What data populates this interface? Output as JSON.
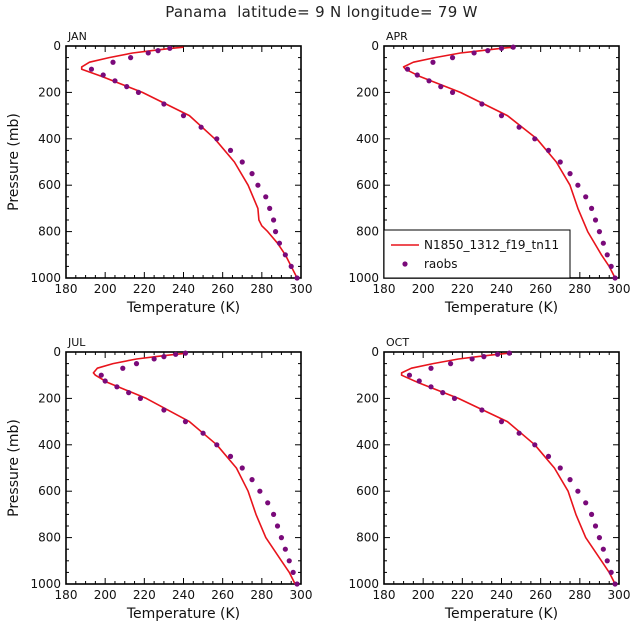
{
  "figure": {
    "title": "Panama  latitude= 9 N longitude= 79 W"
  },
  "colors": {
    "model": "#e8141c",
    "obs": "#7a0a7a",
    "axis": "#000000"
  },
  "legend": {
    "panel": 1,
    "placement": "bottom-left",
    "entries": [
      "N1850_1312_f19_tn11",
      "raobs"
    ]
  },
  "chart_data": [
    {
      "type": "line",
      "label": "JAN",
      "xlabel": "Temperature (K)",
      "ylabel": "Pressure (mb)",
      "xlim": [
        180,
        300
      ],
      "ylim": [
        1000,
        0
      ],
      "xticks": [
        180,
        200,
        220,
        240,
        260,
        280,
        300
      ],
      "yticks": [
        0,
        200,
        400,
        600,
        800,
        1000
      ],
      "model": {
        "name": "N1850_1312_f19_tn11",
        "p": [
          5,
          10,
          20,
          30,
          50,
          70,
          90,
          100,
          130,
          200,
          300,
          400,
          500,
          600,
          700,
          750,
          775,
          800,
          850,
          900,
          950,
          1000
        ],
        "t": [
          240,
          234,
          224,
          214,
          202,
          192,
          188,
          188,
          198,
          219,
          243,
          256,
          266,
          273,
          278,
          278.5,
          280,
          283,
          288,
          292,
          295,
          298
        ]
      },
      "raobs": {
        "name": "raobs",
        "p": [
          10,
          20,
          30,
          50,
          70,
          100,
          125,
          150,
          175,
          200,
          250,
          300,
          350,
          400,
          450,
          500,
          550,
          600,
          650,
          700,
          750,
          800,
          850,
          900,
          950,
          1000
        ],
        "t": [
          233,
          227,
          222,
          213,
          204,
          193,
          199,
          205,
          211,
          217,
          230,
          240,
          249,
          257,
          264,
          270,
          275,
          278,
          282,
          284,
          286,
          287,
          289,
          292,
          295,
          298
        ]
      }
    },
    {
      "type": "line",
      "label": "APR",
      "xlabel": "Temperature (K)",
      "ylabel": "",
      "xlim": [
        180,
        300
      ],
      "ylim": [
        1000,
        0
      ],
      "xticks": [
        180,
        200,
        220,
        240,
        260,
        280,
        300
      ],
      "yticks": [
        0,
        200,
        400,
        600,
        800,
        1000
      ],
      "model": {
        "name": "N1850_1312_f19_tn11",
        "p": [
          5,
          10,
          20,
          30,
          50,
          70,
          90,
          100,
          130,
          200,
          300,
          400,
          500,
          600,
          700,
          800,
          900,
          950,
          1000
        ],
        "t": [
          246,
          240,
          230,
          219,
          206,
          195,
          190,
          191,
          198,
          219,
          243,
          258,
          268,
          275,
          279,
          284,
          291,
          295,
          298
        ]
      },
      "raobs": {
        "name": "raobs",
        "p": [
          5,
          10,
          20,
          30,
          50,
          70,
          100,
          125,
          150,
          175,
          200,
          250,
          300,
          350,
          400,
          450,
          500,
          550,
          600,
          650,
          700,
          750,
          800,
          850,
          900,
          950,
          1000
        ],
        "t": [
          246,
          240,
          233,
          226,
          215,
          205,
          192,
          197,
          203,
          209,
          215,
          230,
          240,
          249,
          257,
          264,
          270,
          275,
          279,
          283,
          286,
          288,
          290,
          292,
          294,
          296,
          298
        ]
      }
    },
    {
      "type": "line",
      "label": "JUL",
      "xlabel": "Temperature (K)",
      "ylabel": "Pressure (mb)",
      "xlim": [
        180,
        300
      ],
      "ylim": [
        1000,
        0
      ],
      "xticks": [
        180,
        200,
        220,
        240,
        260,
        280,
        300
      ],
      "yticks": [
        0,
        200,
        400,
        600,
        800,
        1000
      ],
      "model": {
        "name": "N1850_1312_f19_tn11",
        "p": [
          5,
          10,
          20,
          30,
          50,
          70,
          90,
          100,
          130,
          200,
          300,
          400,
          500,
          600,
          700,
          800,
          900,
          950,
          1000
        ],
        "t": [
          242,
          236,
          226,
          216,
          204,
          196,
          194,
          195,
          201,
          221,
          243,
          257,
          267,
          273,
          277,
          282,
          290,
          294,
          297
        ]
      },
      "raobs": {
        "name": "raobs",
        "p": [
          5,
          10,
          20,
          30,
          50,
          70,
          100,
          125,
          150,
          175,
          200,
          250,
          300,
          350,
          400,
          450,
          500,
          550,
          600,
          650,
          700,
          750,
          800,
          850,
          900,
          950,
          1000
        ],
        "t": [
          241,
          236,
          230,
          225,
          216,
          209,
          198,
          200,
          206,
          212,
          218,
          230,
          241,
          250,
          257,
          264,
          270,
          275,
          279,
          283,
          286,
          288,
          290,
          292,
          294,
          296,
          298
        ]
      }
    },
    {
      "type": "line",
      "label": "OCT",
      "xlabel": "Temperature (K)",
      "ylabel": "",
      "xlim": [
        180,
        300
      ],
      "ylim": [
        1000,
        0
      ],
      "xticks": [
        180,
        200,
        220,
        240,
        260,
        280,
        300
      ],
      "yticks": [
        0,
        200,
        400,
        600,
        800,
        1000
      ],
      "model": {
        "name": "N1850_1312_f19_tn11",
        "p": [
          5,
          10,
          20,
          30,
          50,
          70,
          90,
          100,
          130,
          200,
          300,
          400,
          500,
          600,
          700,
          800,
          900,
          950,
          1000
        ],
        "t": [
          244,
          238,
          228,
          218,
          205,
          194,
          189,
          189,
          197,
          218,
          243,
          257,
          267,
          274,
          278,
          283,
          291,
          295,
          298
        ]
      },
      "raobs": {
        "name": "raobs",
        "p": [
          5,
          10,
          20,
          30,
          50,
          70,
          100,
          125,
          150,
          175,
          200,
          250,
          300,
          350,
          400,
          450,
          500,
          550,
          600,
          650,
          700,
          750,
          800,
          850,
          900,
          950,
          1000
        ],
        "t": [
          244,
          238,
          231,
          225,
          214,
          204,
          193,
          198,
          204,
          210,
          216,
          230,
          240,
          249,
          257,
          264,
          270,
          275,
          279,
          283,
          286,
          288,
          290,
          292,
          294,
          296,
          298
        ]
      }
    }
  ]
}
